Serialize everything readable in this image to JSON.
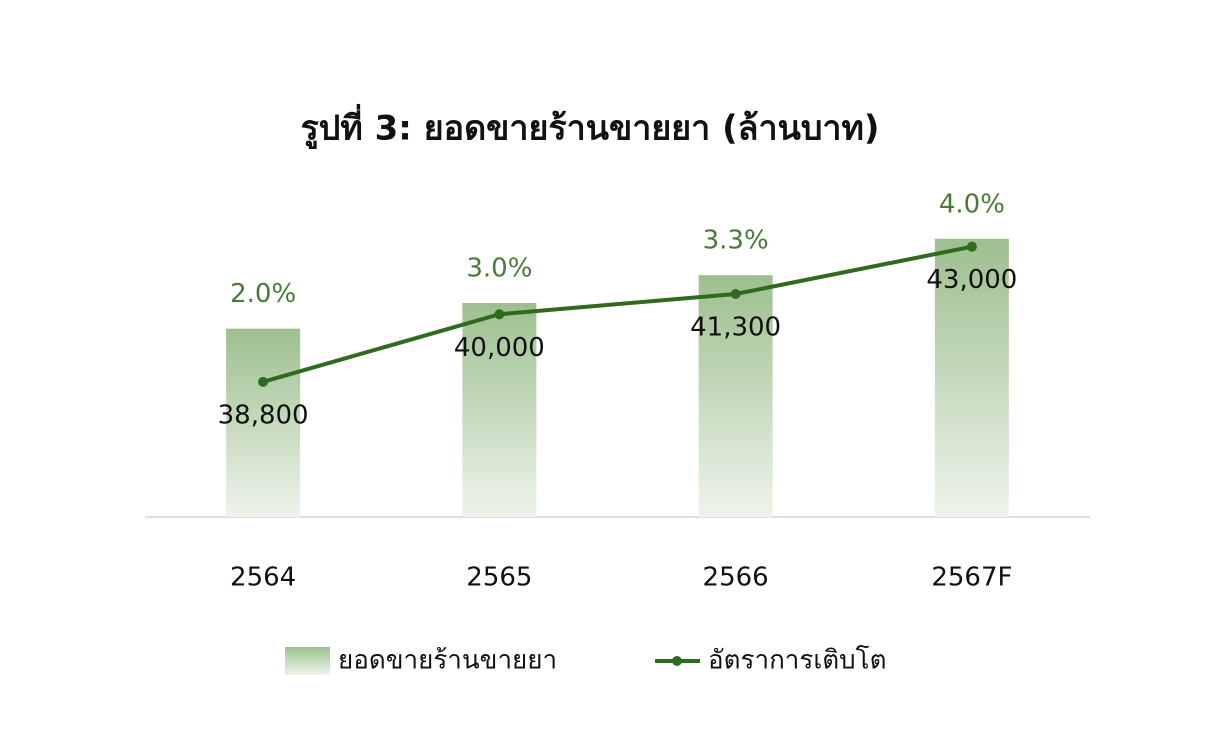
{
  "chart_data": {
    "type": "bar",
    "title": "รูปที่ 3: ยอดขายร้านขายยา (ล้านบาท)",
    "categories": [
      "2564",
      "2565",
      "2566",
      "2567F"
    ],
    "series": [
      {
        "name": "ยอดขายร้านขายยา",
        "type": "bar",
        "color": "#9dbf8f",
        "values": [
          38800,
          40000,
          41300,
          43000
        ],
        "value_labels": [
          "38,800",
          "40,000",
          "41,300",
          "43,000"
        ]
      },
      {
        "name": "อัตราการเติบโต",
        "type": "line",
        "color": "#2f6a1f",
        "axis": "y2",
        "values": [
          2.0,
          3.0,
          3.3,
          4.0
        ],
        "value_labels": [
          "2.0%",
          "3.0%",
          "3.3%",
          "4.0%"
        ]
      }
    ],
    "ylim": [
      30000,
      45000
    ],
    "y2lim": [
      0,
      4.75
    ]
  }
}
